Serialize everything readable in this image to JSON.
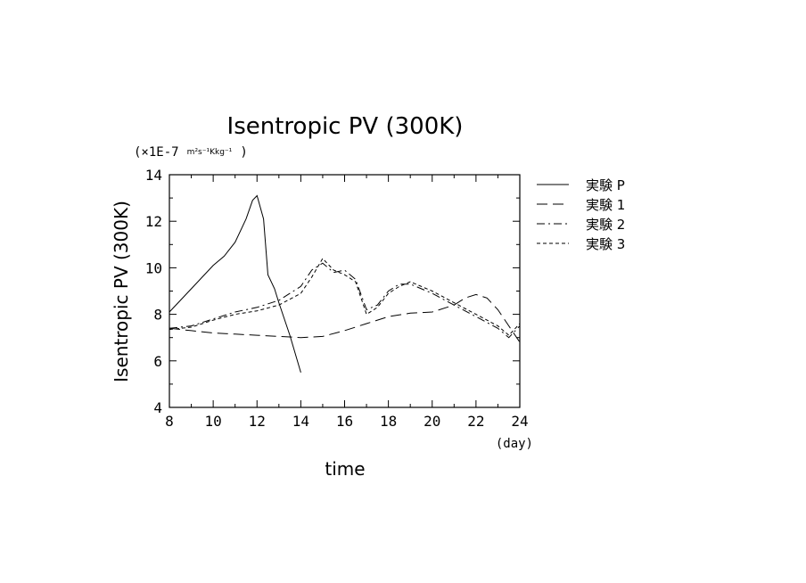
{
  "chart_data": {
    "type": "line",
    "title": "Isentropic PV (300K)",
    "ylabel": "Isentropic PV (300K)",
    "xlabel": "time",
    "x_unit": "(day)",
    "y_scale_prefix": "(×1E-7",
    "y_unit": "m²s⁻¹Kkg⁻¹",
    "y_scale_suffix": ")",
    "xlim": [
      8,
      24
    ],
    "ylim": [
      4,
      14
    ],
    "x_ticks": [
      8,
      10,
      12,
      14,
      16,
      18,
      20,
      22,
      24
    ],
    "y_ticks": [
      4,
      6,
      8,
      10,
      12,
      14
    ],
    "legend_position": "right",
    "series": [
      {
        "name": "実験 P",
        "dash": "solid",
        "x": [
          8,
          9,
          10,
          10.5,
          11,
          11.5,
          11.8,
          12,
          12.3,
          12.5,
          12.8,
          13,
          13.5,
          14
        ],
        "y": [
          8.1,
          9.1,
          10.1,
          10.5,
          11.1,
          12.1,
          12.9,
          13.1,
          12.1,
          9.7,
          9.1,
          8.5,
          7.1,
          5.5
        ]
      },
      {
        "name": "実験 1",
        "dash": "long-dash",
        "x": [
          8,
          9,
          10,
          11,
          12,
          13,
          14,
          15,
          16,
          17,
          18,
          19,
          20,
          21,
          21.5,
          22,
          22.5,
          23,
          23.5,
          24
        ],
        "y": [
          7.4,
          7.3,
          7.2,
          7.15,
          7.1,
          7.05,
          7.0,
          7.05,
          7.3,
          7.6,
          7.9,
          8.05,
          8.1,
          8.4,
          8.7,
          8.85,
          8.7,
          8.2,
          7.5,
          6.8
        ]
      },
      {
        "name": "実験 2",
        "dash": "dash-dot",
        "x": [
          8,
          9,
          10,
          11,
          12,
          13,
          14,
          14.5,
          15,
          15.5,
          16,
          16.5,
          17,
          17.5,
          18,
          18.5,
          19,
          20,
          21,
          22,
          23,
          23.5,
          24
        ],
        "y": [
          7.4,
          7.5,
          7.8,
          8.1,
          8.3,
          8.6,
          9.2,
          9.9,
          10.2,
          9.8,
          9.9,
          9.5,
          8.2,
          8.4,
          9.0,
          9.3,
          9.3,
          8.9,
          8.4,
          7.9,
          7.4,
          7.0,
          7.5
        ]
      },
      {
        "name": "実験 3",
        "dash": "short-dash",
        "x": [
          8,
          9,
          10,
          11,
          12,
          13,
          14,
          14.5,
          15,
          15.5,
          16,
          16.5,
          17,
          17.5,
          18,
          18.5,
          19,
          20,
          21,
          22,
          23,
          23.5,
          24
        ],
        "y": [
          7.35,
          7.45,
          7.75,
          8.0,
          8.15,
          8.4,
          8.9,
          9.6,
          10.4,
          9.9,
          9.7,
          9.4,
          8.0,
          8.3,
          8.9,
          9.2,
          9.4,
          9.0,
          8.5,
          8.0,
          7.5,
          7.1,
          7.6
        ]
      }
    ]
  }
}
